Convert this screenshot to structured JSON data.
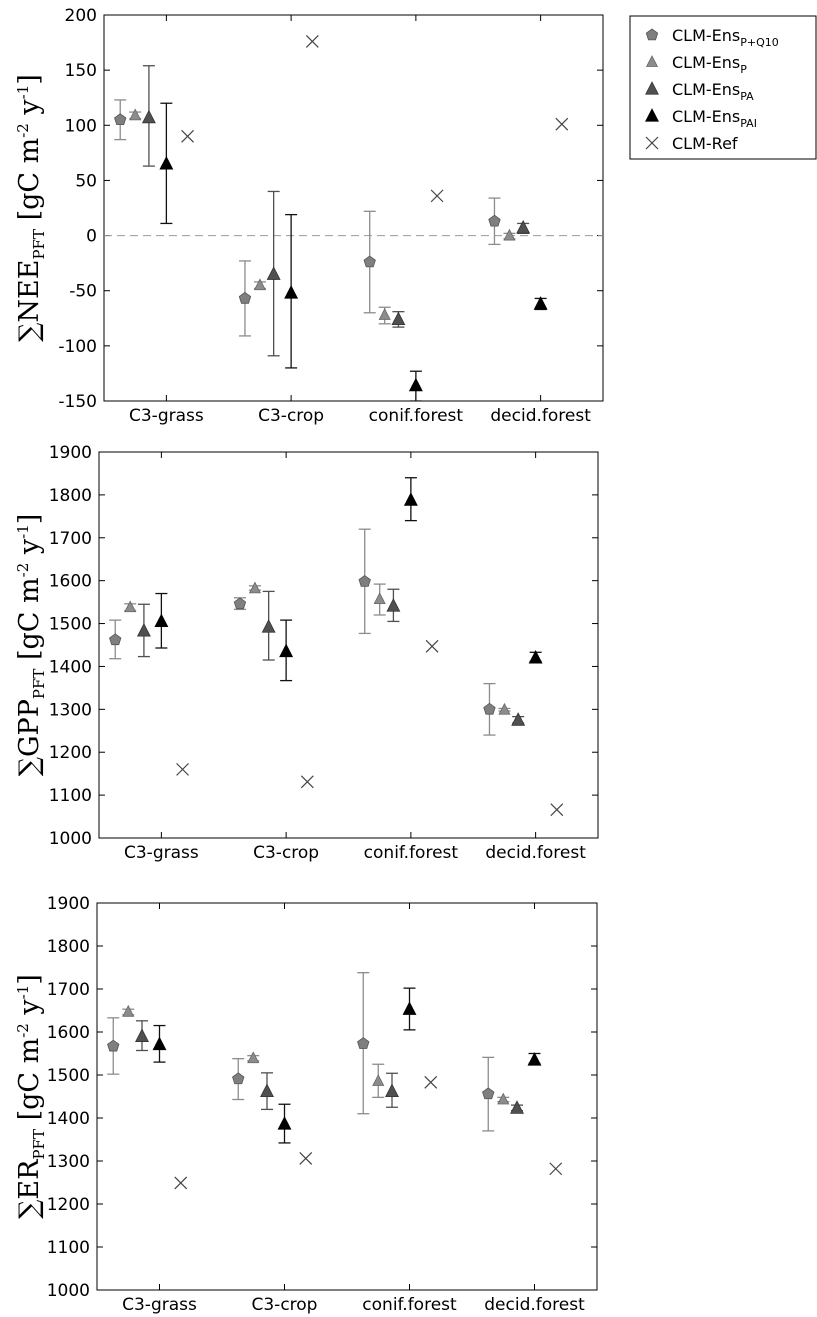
{
  "legend": {
    "placement": "outside top-right",
    "entries": [
      {
        "key": "ensPQ10",
        "base": "CLM-Ens",
        "sub": "P+Q10",
        "marker": "pentagon",
        "color": "#808080"
      },
      {
        "key": "ensP",
        "base": "CLM-Ens",
        "sub": "P",
        "marker": "triangle",
        "color": "#8a8a8a"
      },
      {
        "key": "ensPA",
        "base": "CLM-Ens",
        "sub": "PA",
        "marker": "triangle",
        "color": "#4d4d4d"
      },
      {
        "key": "ensPAI",
        "base": "CLM-Ens",
        "sub": "PAI",
        "marker": "triangle",
        "color": "#000000"
      },
      {
        "key": "ref",
        "base": "CLM-Ref",
        "sub": "",
        "marker": "x",
        "color": "#444444"
      }
    ]
  },
  "chart_data": [
    {
      "type": "scatter",
      "ylabel": {
        "prefix": "∑NEE",
        "sub": "PFT",
        "unit_a": " [gC m",
        "sup1": "-2",
        "unit_b": " y",
        "sup2": "-1",
        "unit_c": "]"
      },
      "categories": [
        "C3-grass",
        "C3-crop",
        "conif.forest",
        "decid.forest"
      ],
      "ylim": [
        -150,
        200
      ],
      "yticks": [
        -150,
        -100,
        -50,
        0,
        50,
        100,
        150,
        200
      ],
      "zero_line": true,
      "series": [
        {
          "name": "CLM-EnsP+Q10",
          "values": [
            105,
            -57,
            -24,
            13
          ],
          "err": [
            [
              87,
              123
            ],
            [
              -91,
              -23
            ],
            [
              -70,
              22
            ],
            [
              -8,
              34
            ]
          ]
        },
        {
          "name": "CLM-EnsP",
          "values": [
            109,
            -45,
            -72,
            0
          ],
          "err": [
            [
              106,
              112
            ],
            [
              -48,
              -42
            ],
            [
              -80,
              -65
            ],
            [
              -3,
              2
            ]
          ]
        },
        {
          "name": "CLM-EnsPA",
          "values": [
            107,
            -35,
            -76,
            7
          ],
          "err": [
            [
              63,
              154
            ],
            [
              -109,
              40
            ],
            [
              -83,
              -69
            ],
            [
              2,
              11
            ]
          ]
        },
        {
          "name": "CLM-EnsPAI",
          "values": [
            65,
            -52,
            -136,
            -62
          ],
          "err": [
            [
              11,
              120
            ],
            [
              -120,
              19
            ],
            [
              -150,
              -123
            ],
            [
              -67,
              -57
            ]
          ]
        },
        {
          "name": "CLM-Ref",
          "values": [
            90,
            176,
            36,
            101
          ],
          "err": null
        }
      ]
    },
    {
      "type": "scatter",
      "ylabel": {
        "prefix": "∑GPP",
        "sub": "PFT",
        "unit_a": " [gC m",
        "sup1": "-2",
        "unit_b": " y",
        "sup2": "-1",
        "unit_c": "]"
      },
      "categories": [
        "C3-grass",
        "C3-crop",
        "conif.forest",
        "decid.forest"
      ],
      "ylim": [
        1000,
        1900
      ],
      "yticks": [
        1000,
        1100,
        1200,
        1300,
        1400,
        1500,
        1600,
        1700,
        1800,
        1900
      ],
      "zero_line": false,
      "series": [
        {
          "name": "CLM-EnsP+Q10",
          "values": [
            1462,
            1546,
            1598,
            1300
          ],
          "err": [
            [
              1418,
              1508
            ],
            [
              1533,
              1560
            ],
            [
              1477,
              1720
            ],
            [
              1240,
              1360
            ]
          ]
        },
        {
          "name": "CLM-EnsP",
          "values": [
            1538,
            1582,
            1557,
            1299
          ],
          "err": [
            [
              1530,
              1546
            ],
            [
              1578,
              1588
            ],
            [
              1520,
              1592
            ],
            [
              1296,
              1302
            ]
          ]
        },
        {
          "name": "CLM-EnsPA",
          "values": [
            1483,
            1492,
            1541,
            1275
          ],
          "err": [
            [
              1423,
              1545
            ],
            [
              1415,
              1575
            ],
            [
              1505,
              1580
            ],
            [
              1268,
              1283
            ]
          ]
        },
        {
          "name": "CLM-EnsPAI",
          "values": [
            1505,
            1435,
            1788,
            1420
          ],
          "err": [
            [
              1443,
              1570
            ],
            [
              1367,
              1508
            ],
            [
              1740,
              1840
            ],
            [
              1412,
              1433
            ]
          ]
        },
        {
          "name": "CLM-Ref",
          "values": [
            1160,
            1131,
            1447,
            1066
          ],
          "err": null
        }
      ]
    },
    {
      "type": "scatter",
      "ylabel": {
        "prefix": "∑ER",
        "sub": "PFT",
        "unit_a": " [gC m",
        "sup1": "-2",
        "unit_b": " y",
        "sup2": "-1",
        "unit_c": "]"
      },
      "categories": [
        "C3-grass",
        "C3-crop",
        "conif.forest",
        "decid.forest"
      ],
      "ylim": [
        1000,
        1900
      ],
      "yticks": [
        1000,
        1100,
        1200,
        1300,
        1400,
        1500,
        1600,
        1700,
        1800,
        1900
      ],
      "zero_line": false,
      "series": [
        {
          "name": "CLM-EnsP+Q10",
          "values": [
            1567,
            1491,
            1573,
            1456
          ],
          "err": [
            [
              1502,
              1633
            ],
            [
              1443,
              1538
            ],
            [
              1410,
              1738
            ],
            [
              1370,
              1541
            ]
          ]
        },
        {
          "name": "CLM-EnsP",
          "values": [
            1647,
            1539,
            1486,
            1443
          ],
          "err": [
            [
              1640,
              1653
            ],
            [
              1533,
              1545
            ],
            [
              1448,
              1525
            ],
            [
              1438,
              1448
            ]
          ]
        },
        {
          "name": "CLM-EnsPA",
          "values": [
            1590,
            1462,
            1462,
            1423
          ],
          "err": [
            [
              1557,
              1626
            ],
            [
              1420,
              1505
            ],
            [
              1425,
              1504
            ],
            [
              1417,
              1430
            ]
          ]
        },
        {
          "name": "CLM-EnsPAI",
          "values": [
            1571,
            1386,
            1653,
            1535
          ],
          "err": [
            [
              1530,
              1615
            ],
            [
              1342,
              1432
            ],
            [
              1605,
              1702
            ],
            [
              1527,
              1550
            ]
          ]
        },
        {
          "name": "CLM-Ref",
          "values": [
            1249,
            1306,
            1483,
            1282
          ],
          "err": null
        }
      ]
    }
  ]
}
